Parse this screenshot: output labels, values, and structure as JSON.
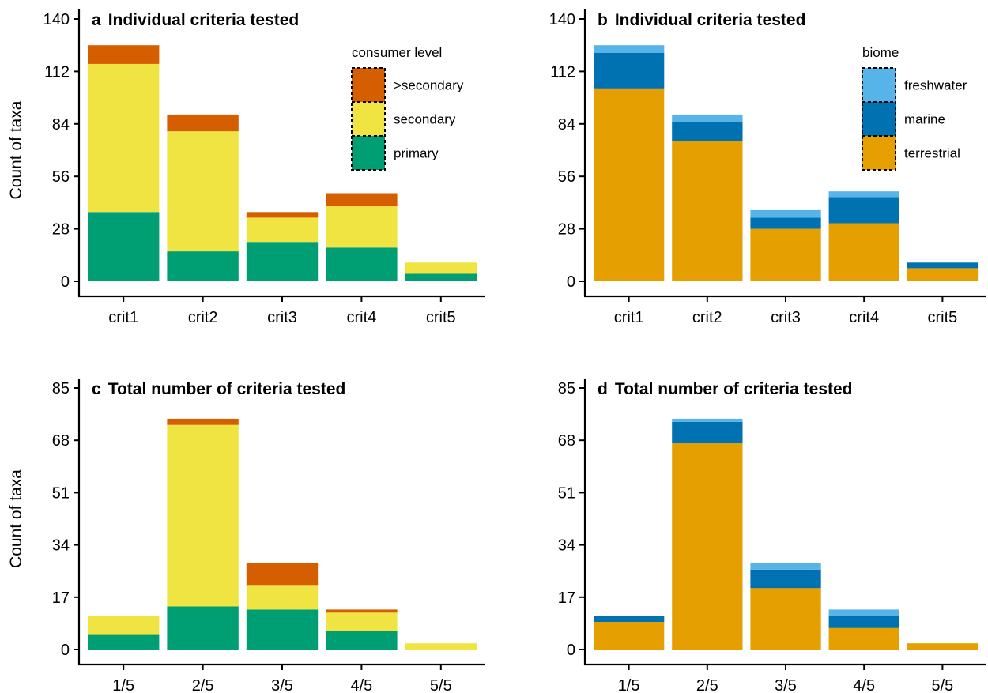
{
  "colors": {
    "primary": "#009E73",
    "secondary": "#F0E442",
    "gtsecondary": "#D55E00",
    "terrestrial": "#E69F00",
    "marine": "#0072B2",
    "freshwater": "#56B4E9"
  },
  "legends": {
    "consumer": {
      "title": "consumer level",
      "items": [
        {
          "label": ">secondary",
          "color": "#D55E00"
        },
        {
          "label": "secondary",
          "color": "#F0E442"
        },
        {
          "label": "primary",
          "color": "#009E73"
        }
      ]
    },
    "biome": {
      "title": "biome",
      "items": [
        {
          "label": "freshwater",
          "color": "#56B4E9"
        },
        {
          "label": "marine",
          "color": "#0072B2"
        },
        {
          "label": "terrestrial",
          "color": "#E69F00"
        }
      ]
    }
  },
  "chart_data": [
    {
      "type": "bar",
      "stacked": true,
      "panel": "a",
      "title": "Individual criteria tested",
      "ylabel": "Count of taxa",
      "xlabel": "",
      "categories": [
        "crit1",
        "crit2",
        "crit3",
        "crit4",
        "crit5"
      ],
      "ylim": [
        0,
        140
      ],
      "yticks": [
        0,
        28,
        56,
        84,
        112,
        140
      ],
      "legend": "consumer",
      "series": [
        {
          "name": "primary",
          "color": "#009E73",
          "values": [
            37,
            16,
            21,
            18,
            4
          ]
        },
        {
          "name": "secondary",
          "color": "#F0E442",
          "values": [
            79,
            64,
            13,
            22,
            6
          ]
        },
        {
          "name": ">secondary",
          "color": "#D55E00",
          "values": [
            10,
            9,
            3,
            7,
            0
          ]
        }
      ]
    },
    {
      "type": "bar",
      "stacked": true,
      "panel": "b",
      "title": "Individual criteria tested",
      "ylabel": "",
      "xlabel": "",
      "categories": [
        "crit1",
        "crit2",
        "crit3",
        "crit4",
        "crit5"
      ],
      "ylim": [
        0,
        140
      ],
      "yticks": [
        0,
        28,
        56,
        84,
        112,
        140
      ],
      "legend": "biome",
      "series": [
        {
          "name": "terrestrial",
          "color": "#E69F00",
          "values": [
            103,
            75,
            28,
            31,
            7
          ]
        },
        {
          "name": "marine",
          "color": "#0072B2",
          "values": [
            19,
            10,
            6,
            14,
            3
          ]
        },
        {
          "name": "freshwater",
          "color": "#56B4E9",
          "values": [
            4,
            4,
            4,
            3,
            0
          ]
        }
      ]
    },
    {
      "type": "bar",
      "stacked": true,
      "panel": "c",
      "title": "Total number of criteria tested",
      "ylabel": "Count of taxa",
      "xlabel": "",
      "categories": [
        "1/5",
        "2/5",
        "3/5",
        "4/5",
        "5/5"
      ],
      "ylim": [
        0,
        85
      ],
      "yticks": [
        0,
        17,
        34,
        51,
        68,
        85
      ],
      "legend": null,
      "series": [
        {
          "name": "primary",
          "color": "#009E73",
          "values": [
            5,
            14,
            13,
            6,
            0
          ]
        },
        {
          "name": "secondary",
          "color": "#F0E442",
          "values": [
            6,
            59,
            8,
            6,
            2
          ]
        },
        {
          "name": ">secondary",
          "color": "#D55E00",
          "values": [
            0,
            2,
            7,
            1,
            0
          ]
        }
      ]
    },
    {
      "type": "bar",
      "stacked": true,
      "panel": "d",
      "title": "Total number of criteria tested",
      "ylabel": "",
      "xlabel": "",
      "categories": [
        "1/5",
        "2/5",
        "3/5",
        "4/5",
        "5/5"
      ],
      "ylim": [
        0,
        85
      ],
      "yticks": [
        0,
        17,
        34,
        51,
        68,
        85
      ],
      "legend": null,
      "series": [
        {
          "name": "terrestrial",
          "color": "#E69F00",
          "values": [
            9,
            67,
            20,
            7,
            2
          ]
        },
        {
          "name": "marine",
          "color": "#0072B2",
          "values": [
            2,
            7,
            6,
            4,
            0
          ]
        },
        {
          "name": "freshwater",
          "color": "#56B4E9",
          "values": [
            0,
            1,
            2,
            2,
            0
          ]
        }
      ]
    }
  ]
}
